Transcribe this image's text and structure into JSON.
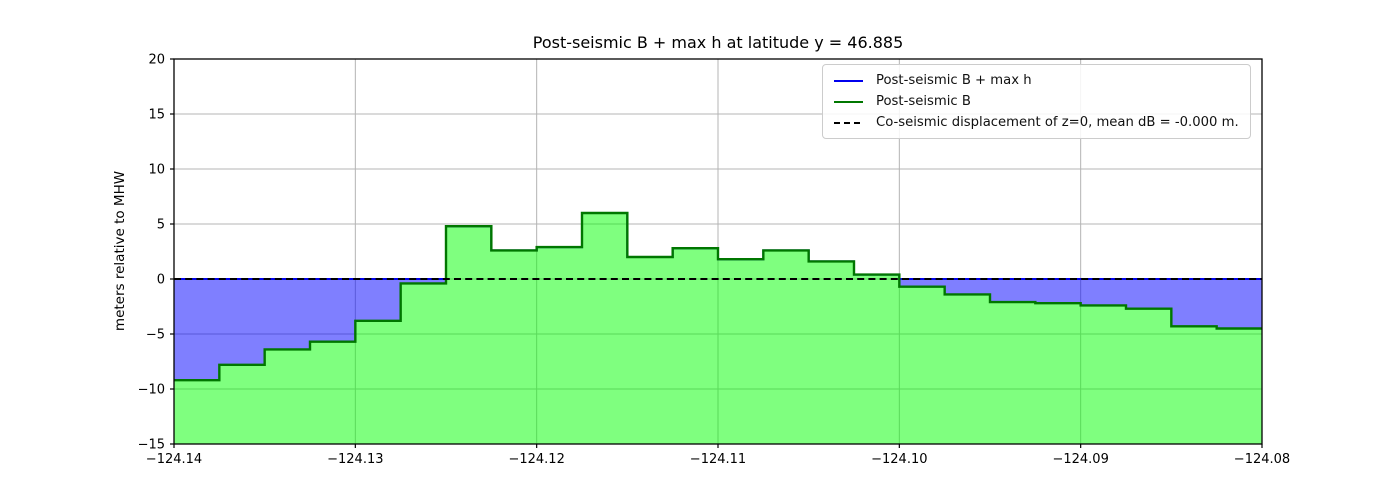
{
  "chart_data": {
    "type": "area",
    "title": "Post-seismic B + max h at latitude y = 46.885",
    "xlabel": "",
    "ylabel": "meters relative to MHW",
    "xlim": [
      -124.14,
      -124.08
    ],
    "ylim": [
      -15,
      20
    ],
    "grid": true,
    "legend_position": "upper right",
    "xticks": {
      "values": [
        -124.14,
        -124.13,
        -124.12,
        -124.11,
        -124.1,
        -124.09,
        -124.08
      ],
      "labels": [
        "−124.14",
        "−124.13",
        "−124.12",
        "−124.11",
        "−124.10",
        "−124.09",
        "−124.08"
      ]
    },
    "yticks": {
      "values": [
        -15,
        -10,
        -5,
        0,
        5,
        10,
        15,
        20
      ],
      "labels": [
        "−15",
        "−10",
        "−5",
        "0",
        "5",
        "10",
        "15",
        "20"
      ]
    },
    "legend": [
      {
        "label": "Post-seismic B + max h",
        "color": "#0000ee",
        "style": "solid"
      },
      {
        "label": "Post-seismic B",
        "color": "#007700",
        "style": "solid"
      },
      {
        "label": "Co-seismic displacement of z=0, mean dB = -0.000 m.",
        "color": "#000000",
        "style": "dashed"
      }
    ],
    "series": [
      {
        "name": "Post-seismic B + max h",
        "type": "step-line",
        "color": "#0000ee",
        "note": "equals 0 offshore (water surface at MHW), equals B onshore",
        "value_offshore": 0
      },
      {
        "name": "Post-seismic B",
        "type": "step-area",
        "line_color": "#007700",
        "fill_color": "rgba(0,255,0,0.5)",
        "x_edges": [
          -124.14,
          -124.1375,
          -124.135,
          -124.1325,
          -124.13,
          -124.1275,
          -124.125,
          -124.1225,
          -124.12,
          -124.1175,
          -124.115,
          -124.1125,
          -124.11,
          -124.1075,
          -124.105,
          -124.1025,
          -124.1,
          -124.0975,
          -124.095,
          -124.0925,
          -124.09,
          -124.0875,
          -124.085,
          -124.0825,
          -124.08
        ],
        "values": [
          -9.2,
          -7.8,
          -6.4,
          -5.7,
          -3.8,
          -0.4,
          4.8,
          2.6,
          2.9,
          6.0,
          2.0,
          2.8,
          1.8,
          2.6,
          1.6,
          0.4,
          -0.7,
          -1.4,
          -2.1,
          -2.2,
          -2.4,
          -2.7,
          -4.3,
          -4.5
        ]
      },
      {
        "name": "Co-seismic displacement of z=0, mean dB = -0.000 m.",
        "type": "dashed-line",
        "color": "#000000",
        "value": 0,
        "mean_dB": "-0.000"
      }
    ],
    "water_fill_color": "rgba(0,0,255,0.5)",
    "grid_color": "#b4b4b4",
    "spine_color": "#000000"
  }
}
